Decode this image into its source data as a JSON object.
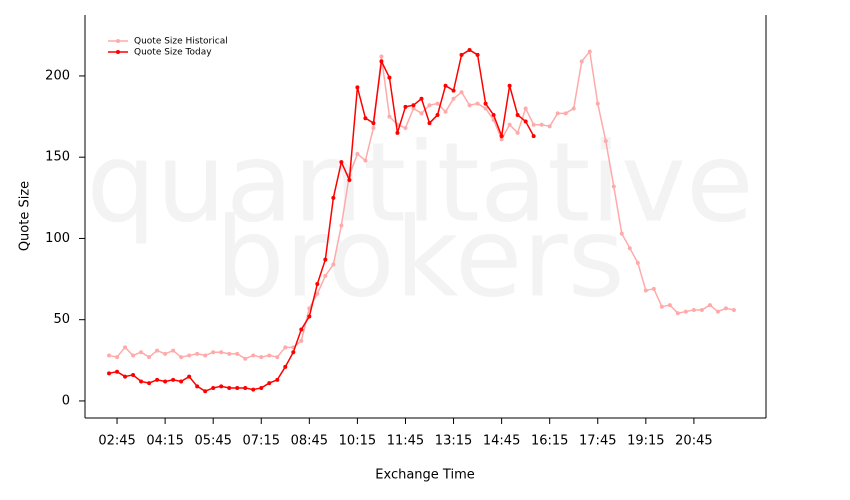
{
  "chart_data": {
    "type": "line",
    "watermark": [
      "quantitative",
      "brokers"
    ],
    "xlabel": "Exchange Time",
    "ylabel": "Quote Size",
    "xlim": [
      1.75,
      23.0
    ],
    "ylim": [
      -10.5,
      237.5
    ],
    "xticks": [
      {
        "value": 2.75,
        "label": "02:45"
      },
      {
        "value": 4.25,
        "label": "04:15"
      },
      {
        "value": 5.75,
        "label": "05:45"
      },
      {
        "value": 7.25,
        "label": "07:15"
      },
      {
        "value": 8.75,
        "label": "08:45"
      },
      {
        "value": 10.25,
        "label": "10:15"
      },
      {
        "value": 11.75,
        "label": "11:45"
      },
      {
        "value": 13.25,
        "label": "13:15"
      },
      {
        "value": 14.75,
        "label": "14:45"
      },
      {
        "value": 16.25,
        "label": "16:15"
      },
      {
        "value": 17.75,
        "label": "17:45"
      },
      {
        "value": 19.25,
        "label": "19:15"
      },
      {
        "value": 20.75,
        "label": "20:45"
      }
    ],
    "yticks": [
      0,
      50,
      100,
      150,
      200
    ],
    "legend": "upper left",
    "series": [
      {
        "name": "Quote Size Historical",
        "color": "#ffaaaa",
        "x": [
          2.5,
          2.75,
          3,
          3.25,
          3.5,
          3.75,
          4,
          4.25,
          4.5,
          4.75,
          5,
          5.25,
          5.5,
          5.75,
          6,
          6.25,
          6.5,
          6.75,
          7,
          7.25,
          7.5,
          7.75,
          8,
          8.25,
          8.5,
          8.75,
          9,
          9.25,
          9.5,
          9.75,
          10,
          10.25,
          10.5,
          10.75,
          11,
          11.25,
          11.5,
          11.75,
          12,
          12.25,
          12.5,
          12.75,
          13,
          13.25,
          13.5,
          13.75,
          14,
          14.25,
          14.5,
          14.75,
          15,
          15.25,
          15.5,
          15.75,
          16,
          16.25,
          16.5,
          16.75,
          17,
          17.25,
          17.5,
          17.75,
          18,
          18.25,
          18.5,
          18.75,
          19,
          19.25,
          19.5,
          19.75,
          20,
          20.25,
          20.5,
          20.75,
          21,
          21.25,
          21.5,
          21.75,
          22
        ],
        "values": [
          28,
          27,
          33,
          28,
          30,
          27,
          31,
          29,
          31,
          27,
          28,
          29,
          28,
          30,
          30,
          29,
          29,
          26,
          28,
          27,
          28,
          27,
          33,
          33,
          37,
          57,
          66,
          77,
          84,
          108,
          139,
          152,
          148,
          168,
          212,
          175,
          170,
          168,
          180,
          177,
          182,
          183,
          178,
          186,
          190,
          182,
          183,
          180,
          173,
          161,
          170,
          165,
          180,
          170,
          170,
          169,
          177,
          177,
          180,
          209,
          215,
          183,
          160,
          132,
          103,
          94,
          85,
          68,
          69,
          58,
          59,
          54,
          55,
          56,
          56,
          59,
          55,
          57,
          56
        ]
      },
      {
        "name": "Quote Size Today",
        "color": "#ff0000",
        "x": [
          2.5,
          2.75,
          3,
          3.25,
          3.5,
          3.75,
          4,
          4.25,
          4.5,
          4.75,
          5,
          5.25,
          5.5,
          5.75,
          6,
          6.25,
          6.5,
          6.75,
          7,
          7.25,
          7.5,
          7.75,
          8,
          8.25,
          8.5,
          8.75,
          9,
          9.25,
          9.5,
          9.75,
          10,
          10.25,
          10.5,
          10.75,
          11,
          11.25,
          11.5,
          11.75,
          12,
          12.25,
          12.5,
          12.75,
          13,
          13.25,
          13.5,
          13.75,
          14,
          14.25,
          14.5,
          14.75,
          15,
          15.25,
          15.5,
          15.75
        ],
        "values": [
          17,
          18,
          15,
          16,
          12,
          11,
          13,
          12,
          13,
          12,
          15,
          9,
          6,
          8,
          9,
          8,
          8,
          8,
          7,
          8,
          11,
          13,
          21,
          30,
          44,
          52,
          72,
          87,
          125,
          147,
          136,
          193,
          174,
          171,
          209,
          199,
          165,
          181,
          182,
          186,
          171,
          176,
          194,
          191,
          213,
          216,
          213,
          183,
          176,
          163,
          194,
          176,
          172,
          163
        ]
      }
    ]
  }
}
